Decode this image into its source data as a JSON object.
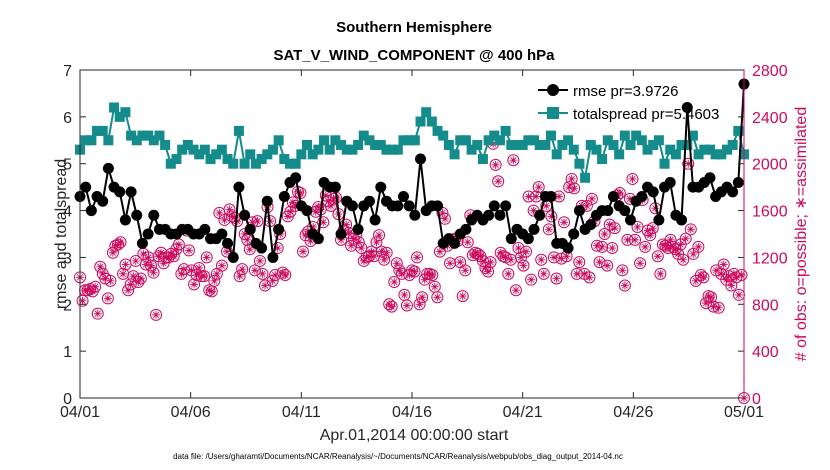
{
  "chart_data": {
    "type": "line",
    "title": "Southern Hemisphere",
    "subtitle": "SAT_V_WIND_COMPONENT @ 400 hPa",
    "xlabel": "Apr.01,2014 00:00:00 start",
    "ylabel_left": "rmse and totalspread",
    "ylabel_right": "# of obs: o=possible; ∗=assimilated",
    "footnote": "data file: /Users/gharamti/Documents/NCAR/Reanalysis/~/Documents/NCAR/Reanalysis/webpub/obs_diag_output_2014-04.nc",
    "x_ticks": [
      "04/01",
      "04/06",
      "04/11",
      "04/16",
      "04/21",
      "04/26",
      "05/01"
    ],
    "x_tick_days": [
      0,
      5,
      10,
      15,
      20,
      25,
      30
    ],
    "xlim_days": [
      0,
      30
    ],
    "ylim_left": [
      0,
      7
    ],
    "yticks_left": [
      "0",
      "1",
      "2",
      "3",
      "4",
      "5",
      "6",
      "7"
    ],
    "ylim_right": [
      0,
      2800
    ],
    "yticks_right": [
      "0",
      "400",
      "800",
      "1200",
      "1600",
      "2000",
      "2400",
      "2800"
    ],
    "grid": false,
    "legend_position": "top-right",
    "colors": {
      "rmse": "#000000",
      "totalspread": "#148c8c",
      "obs": "#cc0a5e",
      "axis": "#262626"
    },
    "series": [
      {
        "name": "rmse pr=3.9726",
        "axis": "left",
        "marker": "filled-circle",
        "values": [
          4.3,
          4.5,
          4.0,
          4.3,
          4.2,
          4.9,
          4.5,
          4.4,
          3.8,
          4.4,
          3.9,
          3.3,
          3.5,
          3.9,
          3.6,
          3.6,
          3.5,
          3.5,
          3.6,
          3.6,
          3.5,
          3.5,
          3.6,
          3.4,
          3.4,
          3.5,
          3.3,
          3.0,
          4.5,
          3.9,
          3.6,
          3.3,
          3.2,
          4.2,
          3.0,
          3.6,
          4.3,
          4.6,
          4.7,
          4.1,
          4.0,
          3.5,
          3.4,
          4.6,
          4.5,
          4.5,
          3.5,
          4.2,
          4.1,
          3.6,
          4.1,
          4.2,
          3.8,
          4.5,
          4.2,
          4.1,
          4.1,
          4.3,
          4.1,
          3.9,
          5.1,
          4.0,
          4.1,
          4.1,
          3.3,
          3.4,
          3.3,
          3.5,
          3.6,
          3.8,
          3.9,
          3.8,
          3.9,
          4.1,
          3.9,
          4.1,
          3.4,
          3.6,
          3.5,
          3.4,
          3.6,
          3.9,
          4.3,
          4.3,
          3.3,
          3.3,
          3.2,
          3.5,
          4.0,
          3.6,
          3.7,
          3.9,
          4.0,
          4.0,
          4.3,
          4.1,
          4.0,
          3.8,
          4.2,
          4.3,
          4.5,
          4.4,
          3.8,
          4.5,
          4.6,
          3.9,
          3.8,
          6.2,
          4.5,
          4.5,
          4.6,
          4.7,
          4.3,
          4.4,
          4.5,
          4.4,
          4.6,
          6.7
        ]
      },
      {
        "name": "totalspread pr=5.4603",
        "axis": "left",
        "marker": "filled-square",
        "values": [
          5.3,
          5.5,
          5.5,
          5.7,
          5.7,
          5.5,
          6.2,
          6.0,
          6.1,
          5.6,
          5.5,
          5.6,
          5.6,
          5.5,
          5.6,
          5.4,
          5.0,
          5.1,
          5.3,
          5.4,
          5.3,
          5.2,
          5.3,
          5.1,
          5.2,
          5.3,
          5.1,
          5.0,
          5.7,
          5.0,
          5.2,
          5.0,
          5.1,
          5.2,
          5.3,
          5.5,
          5.1,
          5.0,
          5.0,
          5.2,
          5.4,
          5.2,
          5.3,
          5.5,
          5.3,
          5.5,
          5.4,
          5.3,
          5.3,
          5.4,
          5.6,
          5.5,
          5.4,
          5.4,
          5.3,
          5.3,
          5.3,
          5.5,
          5.5,
          5.5,
          5.9,
          6.1,
          5.9,
          5.7,
          5.6,
          5.4,
          5.2,
          5.5,
          5.5,
          5.3,
          5.4,
          5.1,
          5.5,
          5.6,
          5.5,
          5.7,
          5.4,
          5.4,
          5.4,
          5.5,
          5.5,
          5.4,
          5.4,
          5.6,
          5.2,
          5.4,
          5.5,
          5.3,
          5.0,
          4.7,
          5.4,
          5.3,
          5.1,
          5.5,
          5.4,
          5.2,
          5.6,
          5.4,
          5.6,
          5.5,
          5.3,
          5.4,
          5.5,
          5.0,
          5.3,
          5.2,
          5.4,
          5.4,
          5.6,
          5.2,
          5.3,
          5.3,
          5.2,
          5.2,
          5.3,
          5.4,
          5.7,
          5.2
        ]
      },
      {
        "name": "# of obs assimilated",
        "axis": "right",
        "marker": "asterisk-circle",
        "values": [
          1030,
          830,
          920,
          920,
          930,
          910,
          950,
          720,
          1120,
          1060,
          1020,
          850,
          1000,
          1240,
          1300,
          1310,
          1330,
          1060,
          1140,
          920,
          970,
          1040,
          1170,
          990,
          1020,
          1230,
          1140,
          1200,
          1130,
          1070,
          710,
          1210,
          1240,
          1150,
          1200,
          1200,
          1230,
          1210,
          1270,
          1310,
          1060,
          1100,
          1430,
          1260,
          1090,
          970,
          1050,
          1110,
          1040,
          1040,
          1200,
          920,
          910,
          1000,
          1060,
          1580,
          1130,
          1520,
          1250,
          1610,
          1550,
          1540,
          1510,
          1040,
          1100,
          1400,
          1350,
          1270,
          1500,
          1090,
          1510,
          1170,
          1060,
          960,
          1630,
          1510,
          1000,
          1050,
          1280,
          1400,
          1070,
          1050,
          1550,
          1590,
          1670,
          1640,
          1760,
          1750,
          1250,
          1390,
          1420,
          1340,
          1460,
          1590,
          1630,
          1610,
          1500,
          1730,
          1680,
          1640,
          1700,
          1710,
          1570,
          1350,
          1430,
          1480,
          1410,
          1300,
          1360,
          1400,
          1330,
          1280,
          1170,
          1200,
          1210,
          1250,
          1210,
          1330,
          1390,
          1250,
          1180,
          1240,
          800,
          780,
          990,
          1150,
          1090,
          1060,
          880,
          790,
          1050,
          1090,
          1080,
          1200,
          800,
          860,
          1010,
          1060,
          1060,
          1050,
          950,
          860,
          1250,
          1580,
          1530,
          1300,
          1150,
          1350,
          1360,
          1340,
          1160,
          870,
          1090,
          1330,
          1560,
          1220,
          1240,
          1230,
          1210,
          1170,
          1110,
          1080,
          1160,
          2170,
          1990,
          1850,
          1240,
          1210,
          1200,
          1060,
          1180,
          2030,
          920,
          1280,
          1200,
          1130,
          1250,
          1720,
          1010,
          1600,
          1720,
          1800,
          1180,
          1060,
          1640,
          1440,
          1550,
          1200,
          1020,
          1720,
          1190,
          1500,
          1210,
          1800,
          1870,
          1790,
          1060,
          1160,
          1640,
          1060,
          1640,
          1030,
          1700,
          1510,
          1300,
          1160,
          1290,
          1400,
          1130,
          1480,
          1280,
          1450,
          1730,
          1750,
          1090,
          960,
          1350,
          1700,
          1870,
          1350,
          1460,
          1150,
          1690,
          1290,
          1430,
          1390,
          1450,
          1620,
          1210,
          1060,
          1310,
          1300,
          1280,
          1350,
          1290,
          1270,
          1230,
          1310,
          1180,
          1360,
          2000,
          1440,
          1230,
          1000,
          1290,
          1050,
          1030,
          810,
          870,
          860,
          780,
          1090,
          770,
          1060,
          1140,
          1010,
          1040,
          960,
          1060,
          1030,
          880,
          1050,
          0
        ]
      }
    ]
  }
}
